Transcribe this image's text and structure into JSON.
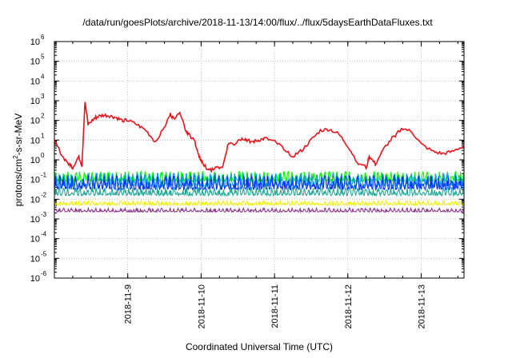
{
  "chart_data": {
    "type": "line",
    "title": "/data/run/goesPlots/archive/2018-11-13/14:00/flux/../flux/5daysEarthDataFluxes.txt",
    "xlabel": "Coordinated Universal Time (UTC)",
    "ylabel_parts": [
      "protons/cm",
      "2",
      "-s-sr-MeV"
    ],
    "y_scale": "log",
    "ylim": [
      1e-06,
      1000000.0
    ],
    "xlim": [
      "2018-11-08 00:00",
      "2018-11-13 14:00"
    ],
    "y_ticks": [
      {
        "base": "10",
        "exp": "-6"
      },
      {
        "base": "10",
        "exp": "-5"
      },
      {
        "base": "10",
        "exp": "-4"
      },
      {
        "base": "10",
        "exp": "-3"
      },
      {
        "base": "10",
        "exp": "-2"
      },
      {
        "base": "10",
        "exp": "-1"
      },
      {
        "base": "10",
        "exp": "0"
      },
      {
        "base": "10",
        "exp": "1"
      },
      {
        "base": "10",
        "exp": "2"
      },
      {
        "base": "10",
        "exp": "3"
      },
      {
        "base": "10",
        "exp": "4"
      },
      {
        "base": "10",
        "exp": "5"
      },
      {
        "base": "10",
        "exp": "6"
      }
    ],
    "x_ticks": [
      {
        "date": "2018-11-09",
        "label": "2018-11-9"
      },
      {
        "date": "2018-11-10",
        "label": "2018-11-10"
      },
      {
        "date": "2018-11-11",
        "label": "2018-11-11"
      },
      {
        "date": "2018-11-12",
        "label": "2018-11-12"
      },
      {
        "date": "2018-11-13",
        "label": "2018-11-13"
      }
    ],
    "grid": true,
    "legend": "none",
    "series": [
      {
        "color": "#e8141b",
        "x": [
          "2018-11-08 00:00",
          "2018-11-08 03:00",
          "2018-11-08 05:00",
          "2018-11-08 06:00",
          "2018-11-08 08:00",
          "2018-11-08 09:00",
          "2018-11-08 10:00",
          "2018-11-08 11:00",
          "2018-11-08 13:00",
          "2018-11-08 14:00",
          "2018-11-08 16:00",
          "2018-11-08 18:00",
          "2018-11-08 20:00",
          "2018-11-08 22:00",
          "2018-11-09 00:00",
          "2018-11-09 03:00",
          "2018-11-09 06:00",
          "2018-11-09 09:00",
          "2018-11-09 12:00",
          "2018-11-09 14:00",
          "2018-11-09 15:00",
          "2018-11-09 17:00",
          "2018-11-09 19:00",
          "2018-11-09 20:00",
          "2018-11-09 22:00",
          "2018-11-09 23:00",
          "2018-11-10 00:00",
          "2018-11-10 01:00",
          "2018-11-10 03:00",
          "2018-11-10 05:00",
          "2018-11-10 07:00",
          "2018-11-10 09:00",
          "2018-11-10 11:00",
          "2018-11-10 12:00",
          "2018-11-10 14:00",
          "2018-11-10 15:00",
          "2018-11-10 17:00",
          "2018-11-10 19:00",
          "2018-11-10 21:00",
          "2018-11-11 00:00",
          "2018-11-11 03:00",
          "2018-11-11 06:00",
          "2018-11-11 09:00",
          "2018-11-11 12:00",
          "2018-11-11 15:00",
          "2018-11-11 18:00",
          "2018-11-11 21:00",
          "2018-11-12 00:00",
          "2018-11-12 03:00",
          "2018-11-12 06:00",
          "2018-11-12 07:00",
          "2018-11-12 09:00",
          "2018-11-12 12:00",
          "2018-11-12 15:00",
          "2018-11-12 18:00",
          "2018-11-12 21:00",
          "2018-11-13 00:00",
          "2018-11-13 04:00",
          "2018-11-13 07:00",
          "2018-11-13 10:00",
          "2018-11-13 14:00"
        ],
        "values": [
          9,
          1.2,
          0.6,
          0.4,
          1.5,
          0.5,
          900,
          60,
          120,
          150,
          180,
          170,
          140,
          100,
          100,
          60,
          30,
          8,
          50,
          200,
          120,
          300,
          30,
          20,
          8,
          2,
          0.9,
          0.5,
          0.3,
          0.4,
          0.35,
          8,
          6,
          10,
          12,
          10,
          8,
          10,
          12,
          8,
          4,
          1.5,
          3,
          10,
          30,
          35,
          20,
          5,
          0.8,
          0.4,
          1.5,
          0.6,
          4,
          15,
          40,
          25,
          6,
          2.5,
          2,
          2.5,
          5
        ]
      },
      {
        "color": "#00f200",
        "x": [
          "2018-11-08 00:00",
          "2018-11-13 14:00"
        ],
        "values": [
          0.12,
          0.12
        ],
        "band": [
          0.06,
          0.25
        ]
      },
      {
        "color": "#009ce0",
        "x": [
          "2018-11-08 00:00",
          "2018-11-13 14:00"
        ],
        "values": [
          0.07,
          0.07
        ],
        "band": [
          0.03,
          0.2
        ]
      },
      {
        "color": "#0033ff",
        "x": [
          "2018-11-08 00:00",
          "2018-11-13 14:00"
        ],
        "values": [
          0.05,
          0.05
        ],
        "band": [
          0.02,
          0.15
        ]
      },
      {
        "color": "#20a89a",
        "x": [
          "2018-11-08 00:00",
          "2018-11-13 14:00"
        ],
        "values": [
          0.02,
          0.02
        ],
        "band": [
          0.012,
          0.04
        ]
      },
      {
        "color": "#f0f000",
        "x": [
          "2018-11-08 00:00",
          "2018-11-13 14:00"
        ],
        "values": [
          0.006,
          0.006
        ],
        "band": [
          0.0045,
          0.008
        ]
      },
      {
        "color": "#8b3a8b",
        "x": [
          "2018-11-08 00:00",
          "2018-11-13 14:00"
        ],
        "values": [
          0.0027,
          0.0027
        ],
        "band": [
          0.002,
          0.0035
        ]
      }
    ]
  }
}
